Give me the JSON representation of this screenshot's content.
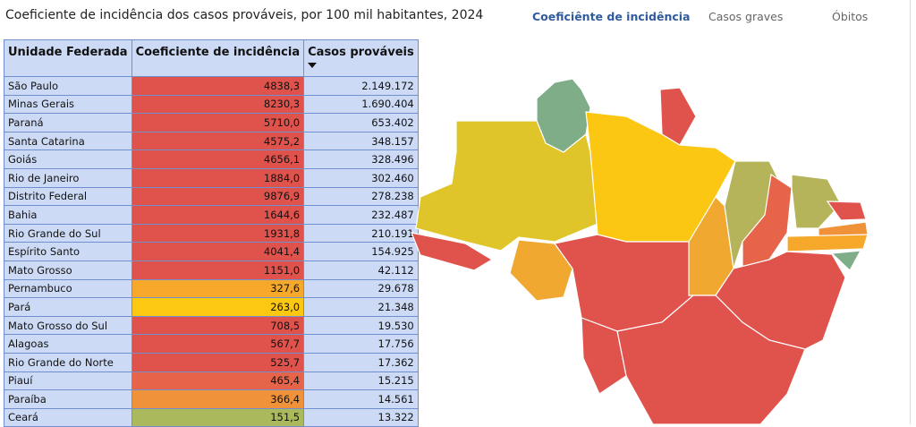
{
  "header": {
    "title": "Coeficiente de incidência dos casos prováveis, por 100 mil habitantes, 2024"
  },
  "tabs": [
    "Coeficiênte de incidência",
    "Casos graves",
    "Óbitos"
  ],
  "table": {
    "columns": [
      "Unidade Federada",
      "Coeficiente de incidência",
      "Casos prováveis"
    ],
    "rows": [
      {
        "cells": [
          "São Paulo",
          "4838,3",
          "2.149.172"
        ],
        "color": "#e0534d"
      },
      {
        "cells": [
          "Minas Gerais",
          "8230,3",
          "1.690.404"
        ],
        "color": "#e0534d"
      },
      {
        "cells": [
          "Paraná",
          "5710,0",
          "653.402"
        ],
        "color": "#e0534d"
      },
      {
        "cells": [
          "Santa Catarina",
          "4575,2",
          "348.157"
        ],
        "color": "#e0534d"
      },
      {
        "cells": [
          "Goiás",
          "4656,1",
          "328.496"
        ],
        "color": "#e0534d"
      },
      {
        "cells": [
          "Rio de Janeiro",
          "1884,0",
          "302.460"
        ],
        "color": "#e0534d"
      },
      {
        "cells": [
          "Distrito Federal",
          "9876,9",
          "278.238"
        ],
        "color": "#e0534d"
      },
      {
        "cells": [
          "Bahia",
          "1644,6",
          "232.487"
        ],
        "color": "#e0534d"
      },
      {
        "cells": [
          "Rio Grande do Sul",
          "1931,8",
          "210.191"
        ],
        "color": "#e0534d"
      },
      {
        "cells": [
          "Espírito Santo",
          "4041,4",
          "154.925"
        ],
        "color": "#e0534d"
      },
      {
        "cells": [
          "Mato Grosso",
          "1151,0",
          "42.112"
        ],
        "color": "#e0534d"
      },
      {
        "cells": [
          "Pernambuco",
          "327,6",
          "29.678"
        ],
        "color": "#f5a82a"
      },
      {
        "cells": [
          "Pará",
          "263,0",
          "21.348"
        ],
        "color": "#fdc812"
      },
      {
        "cells": [
          "Mato Grosso do Sul",
          "708,5",
          "19.530"
        ],
        "color": "#e0534d"
      },
      {
        "cells": [
          "Alagoas",
          "567,7",
          "17.756"
        ],
        "color": "#e0534d"
      },
      {
        "cells": [
          "Rio Grande do Norte",
          "525,7",
          "17.362"
        ],
        "color": "#e0534d"
      },
      {
        "cells": [
          "Piauí",
          "465,4",
          "15.215"
        ],
        "color": "#e5644a"
      },
      {
        "cells": [
          "Paraíba",
          "366,4",
          "14.561"
        ],
        "color": "#f0923a"
      },
      {
        "cells": [
          "Ceará",
          "151,5",
          "13.322"
        ],
        "color": "#a9b95b"
      }
    ]
  }
}
